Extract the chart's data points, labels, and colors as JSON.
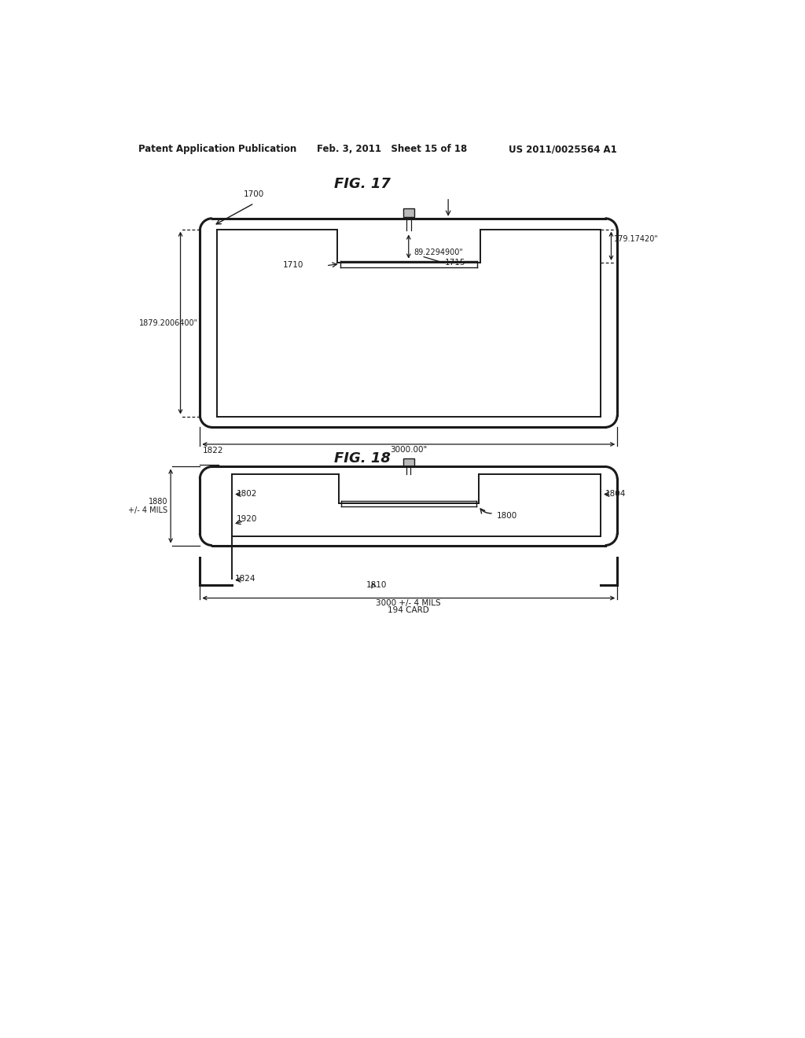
{
  "page_title_left": "Patent Application Publication",
  "page_title_mid": "Feb. 3, 2011   Sheet 15 of 18",
  "page_title_right": "US 2011/0025564 A1",
  "fig17_title": "FIG. 17",
  "fig18_title": "FIG. 18",
  "background_color": "#ffffff",
  "line_color": "#1a1a1a",
  "fig17_label_1700": "1700",
  "fig17_label_1710": "1710",
  "fig17_label_1715": "1715",
  "fig17_dim_179": "179.17420\"",
  "fig17_dim_89": "89.2294900\"",
  "fig17_dim_1879": "1879.2006400\"",
  "fig17_dim_3000": "3000.00\"",
  "fig18_label_1822": "1822",
  "fig18_label_1802": "1802",
  "fig18_label_1804": "1804",
  "fig18_label_1920": "1920",
  "fig18_label_1824": "1824",
  "fig18_label_1810": "1810",
  "fig18_label_1800": "1800",
  "fig18_dim_1880": "1880\n+/- 4 MILS",
  "fig18_dim_3000": "3000 +/- 4 MILS",
  "fig18_dim_194": "194 CARD"
}
